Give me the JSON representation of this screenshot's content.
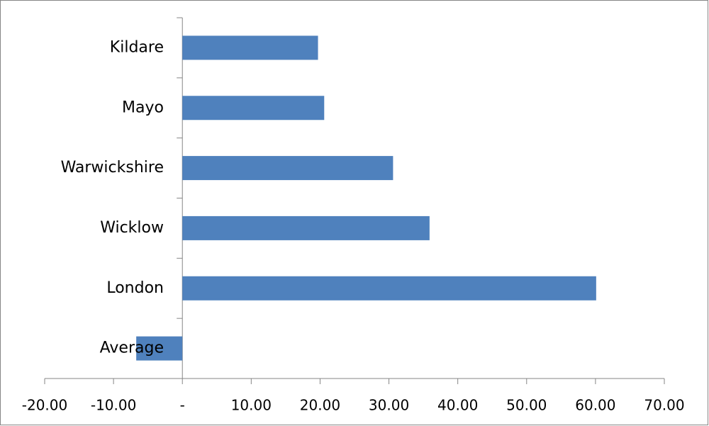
{
  "chart_data": {
    "type": "bar",
    "orientation": "horizontal",
    "categories": [
      "Kildare",
      "Mayo",
      "Warwickshire",
      "Wicklow",
      "London",
      "Average"
    ],
    "values": [
      19.7,
      20.6,
      30.6,
      35.9,
      60.1,
      -6.7
    ],
    "color": "#4f81bd",
    "xlim": [
      -20,
      70
    ],
    "xticks": [
      {
        "value": -20,
        "label": "-20.00"
      },
      {
        "value": -10,
        "label": "-10.00"
      },
      {
        "value": 0,
        "label": "-"
      },
      {
        "value": 10,
        "label": "10.00"
      },
      {
        "value": 20,
        "label": "20.00"
      },
      {
        "value": 30,
        "label": "30.00"
      },
      {
        "value": 40,
        "label": "40.00"
      },
      {
        "value": 50,
        "label": "50.00"
      },
      {
        "value": 60,
        "label": "60.00"
      },
      {
        "value": 70,
        "label": "70.00"
      }
    ],
    "grid": false
  }
}
